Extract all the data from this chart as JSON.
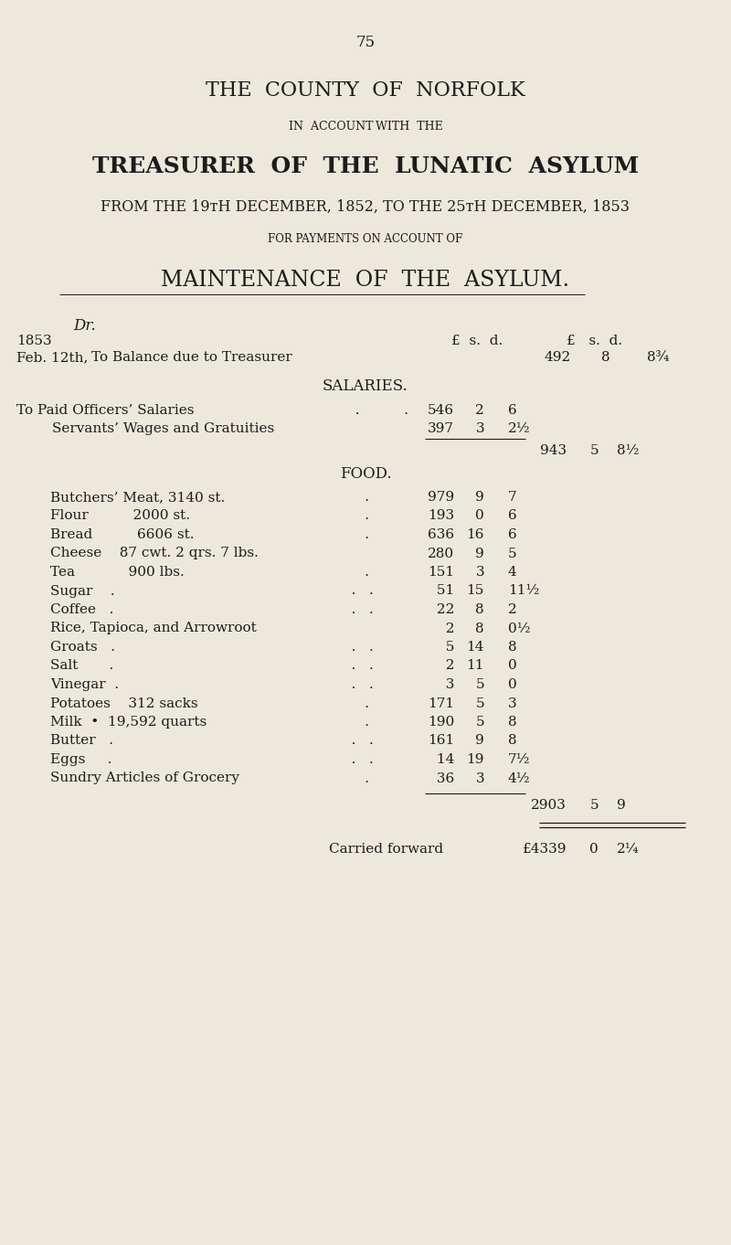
{
  "bg_color": "#ede8dc",
  "text_color": "#1c1c1c",
  "page_number": "75",
  "title1": "THE  COUNTY  OF  NORFOLK",
  "subtitle1": "IN  ACCOUNT WITH  THE",
  "title2": "TREASURER  OF  THE  LUNATIC  ASYLUM",
  "subtitle2": "FROM THE 19ᴛH DECEMBER, 1852, TO THE 25ᴛH DECEMBER, 1853",
  "subtitle3": "FOR PAYMENTS ON ACCOUNT OF",
  "title3": "MAINTENANCE  OF  THE  ASYLUM.",
  "dr_label": "Dr.",
  "year_label": "1853",
  "col_headers_left": "£  s.  d.",
  "col_headers_right": "£   s.  d.",
  "balance_date": "Feb. 12th,",
  "balance_desc": "To Balance due to Treasurer",
  "balance_val1": "492",
  "balance_val2": "8",
  "balance_val3": "8¾",
  "salaries_header": "SALARIES.",
  "sal1_label": "To Paid Officers’ Salaries",
  "sal1_dots": "          .          .",
  "sal1_v1": "546",
  "sal1_v2": "2",
  "sal1_v3": "6",
  "sal2_label": "        Servants’ Wages and Gratuities",
  "sal2_v1": "397",
  "sal2_v2": "3",
  "sal2_v3": "2½",
  "sal_total_v1": "943",
  "sal_total_v2": "5",
  "sal_total_v3": "8½",
  "food_header": "FOOD.",
  "food_items": [
    [
      "Butchers’ Meat, 3140 st.",
      "      .",
      "979",
      "9",
      "7"
    ],
    [
      "Flour          2000 st.",
      "      .",
      "193",
      "0",
      "6"
    ],
    [
      "Bread          6606 st.",
      "      .",
      "636",
      "16",
      "6"
    ],
    [
      "Cheese    87 cwt. 2 qrs. 7 lbs.",
      "",
      "280",
      "9",
      "5"
    ],
    [
      "Tea            900 lbs.",
      "      .",
      "151",
      "3",
      "4"
    ],
    [
      "Sugar    .",
      "   .   .",
      " 51",
      "15",
      "11½"
    ],
    [
      "Coffee   .",
      "   .   .",
      " 22",
      "8",
      "2"
    ],
    [
      "Rice, Tapioca, and Arrowroot",
      "",
      "  2",
      "8",
      "0½"
    ],
    [
      "Groats   .",
      "   .   .",
      "  5",
      "14",
      "8"
    ],
    [
      "Salt       .",
      "   .   .",
      "  2",
      "11",
      "0"
    ],
    [
      "Vinegar  .",
      "   .   .",
      "  3",
      "5",
      "0"
    ],
    [
      "Potatoes    312 sacks",
      "      .",
      "171",
      "5",
      "3"
    ],
    [
      "Milk  •  19,592 quarts",
      "      .",
      "190",
      "5",
      "8"
    ],
    [
      "Butter   .",
      "   .   .",
      "161",
      "9",
      "8"
    ],
    [
      "Eggs     .",
      "   .   .",
      " 14",
      "19",
      "7½"
    ],
    [
      "Sundry Articles of Grocery",
      "      .",
      " 36",
      "3",
      "4½"
    ]
  ],
  "food_total_v1": "2903",
  "food_total_v2": "5",
  "food_total_v3": "9",
  "carried_forward_label": "Carried forward",
  "cf_v1": "£4339",
  "cf_v2": "0",
  "cf_v3": "2¼"
}
